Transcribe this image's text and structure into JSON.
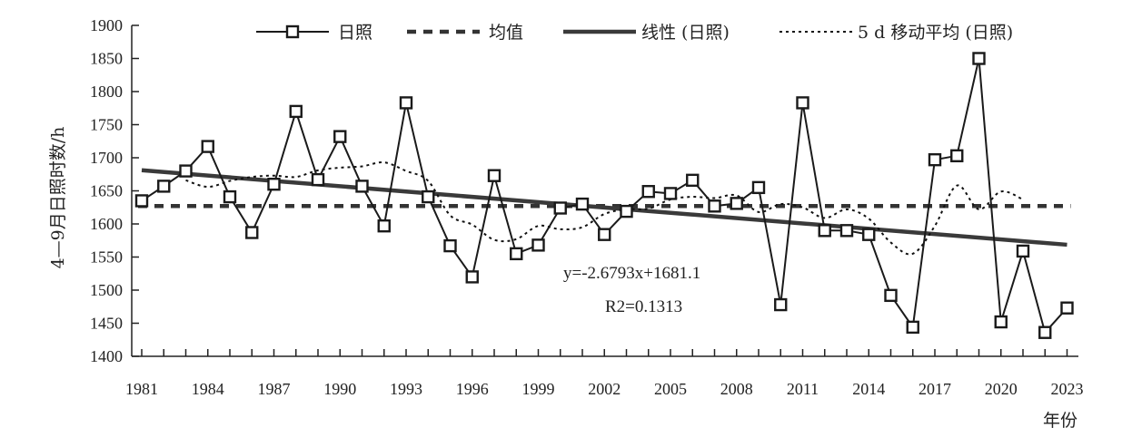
{
  "chart_data": {
    "type": "line",
    "ylabel": "4—9月日照时数/h",
    "xlabel": "年份",
    "ylim": [
      1400,
      1900
    ],
    "yticks": [
      1400,
      1450,
      1500,
      1550,
      1600,
      1650,
      1700,
      1750,
      1800,
      1850,
      1900
    ],
    "xlim": [
      1981,
      2023
    ],
    "xticks": [
      1981,
      1984,
      1987,
      1990,
      1993,
      1996,
      1999,
      2002,
      2005,
      2008,
      2011,
      2014,
      2017,
      2020,
      2023
    ],
    "grid": false,
    "legend_position": "top",
    "legend": {
      "sunshine": "日照",
      "mean": "均值",
      "linear": "线性 (日照)",
      "moving_avg": "5 d 移动平均 (日照)"
    },
    "equation": {
      "line1": "y=-2.6793x+1681.1",
      "line2": "R2=0.1313"
    },
    "mean_value": 1627,
    "trend": {
      "slope": -2.6793,
      "intercept": 1681.1
    },
    "years": [
      1981,
      1982,
      1983,
      1984,
      1985,
      1986,
      1987,
      1988,
      1989,
      1990,
      1991,
      1992,
      1993,
      1994,
      1995,
      1996,
      1997,
      1998,
      1999,
      2000,
      2001,
      2002,
      2003,
      2004,
      2005,
      2006,
      2007,
      2008,
      2009,
      2010,
      2011,
      2012,
      2013,
      2014,
      2015,
      2016,
      2017,
      2018,
      2019,
      2020,
      2021,
      2022,
      2023
    ],
    "series": [
      {
        "name": "日照",
        "values": [
          1635,
          1657,
          1680,
          1717,
          1641,
          1587,
          1660,
          1770,
          1667,
          1732,
          1657,
          1597,
          1783,
          1641,
          1567,
          1520,
          1673,
          1555,
          1568,
          1624,
          1630,
          1584,
          1619,
          1649,
          1646,
          1666,
          1627,
          1631,
          1655,
          1478,
          1783,
          1590,
          1590,
          1584,
          1492,
          1444,
          1697,
          1703,
          1850,
          1452,
          1559,
          1436,
          1473
        ]
      },
      {
        "name": "5 d 移动平均 (日照)",
        "values": [
          null,
          null,
          1666,
          1656,
          1665,
          1671,
          1673,
          1671,
          1681,
          1685,
          1687,
          1693,
          1680,
          1665,
          1613,
          1599,
          1576,
          1577,
          1597,
          1592,
          1595,
          1615,
          1622,
          1623,
          1637,
          1641,
          1639,
          1643,
          1618,
          1630,
          1625,
          1609,
          1622,
          1608,
          1572,
          1555,
          1597,
          1658,
          1622,
          1649,
          1637,
          null,
          null
        ]
      }
    ]
  },
  "colors": {
    "series": "#1a1a1a",
    "mean": "#333333",
    "trend": "#3a3a3a",
    "moving_avg": "#111111",
    "axis": "#222222"
  }
}
